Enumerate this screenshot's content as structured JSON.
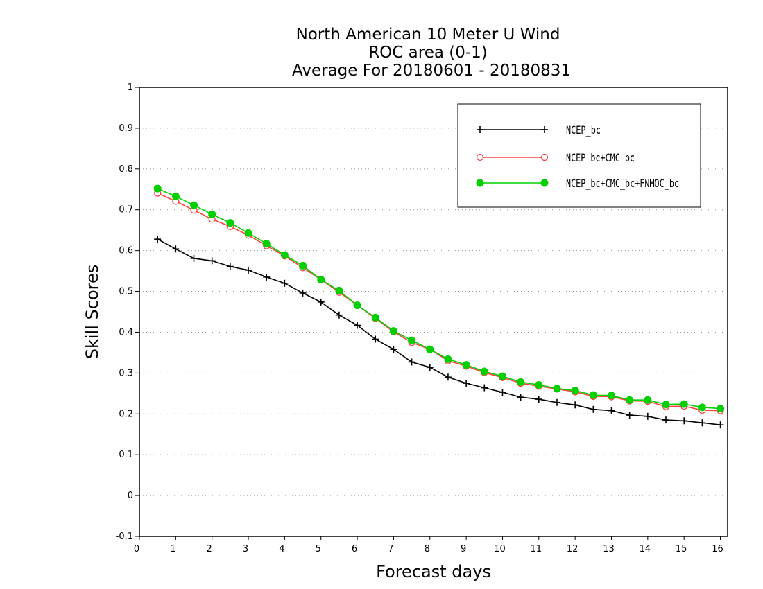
{
  "chart_data": {
    "type": "line",
    "title_lines": [
      "North American 10 Meter U Wind",
      "ROC area (0-1)",
      "Average For 20180601 - 20180831"
    ],
    "xlabel": "Forecast days",
    "ylabel": "Skill Scores",
    "xlim": [
      0,
      16.2
    ],
    "ylim": [
      -0.1,
      1
    ],
    "x_ticks": [
      0,
      1,
      2,
      3,
      4,
      5,
      6,
      7,
      8,
      9,
      10,
      11,
      12,
      13,
      14,
      15,
      16
    ],
    "y_ticks": [
      -0.1,
      0,
      0.1,
      0.2,
      0.3,
      0.4,
      0.5,
      0.6,
      0.7,
      0.8,
      0.9,
      1
    ],
    "y_tick_labels": [
      "-0.1",
      "0",
      "0.1",
      "0.2",
      "0.3",
      "0.4",
      "0.5",
      "0.6",
      "0.7",
      "0.8",
      "0.9",
      "1"
    ],
    "grid": "dotted horizontal",
    "legend_position": "top-right",
    "x": [
      0.5,
      1,
      1.5,
      2,
      2.5,
      3,
      3.5,
      4,
      4.5,
      5,
      5.5,
      6,
      6.5,
      7,
      7.5,
      8,
      8.5,
      9,
      9.5,
      10,
      10.5,
      11,
      11.5,
      12,
      12.5,
      13,
      13.5,
      14,
      14.5,
      15,
      15.5,
      16
    ],
    "series": [
      {
        "name": "NCEP_bc",
        "color": "#000000",
        "marker": "plus",
        "values": [
          0.628,
          0.604,
          0.581,
          0.575,
          0.561,
          0.552,
          0.535,
          0.52,
          0.496,
          0.474,
          0.442,
          0.417,
          0.383,
          0.358,
          0.327,
          0.314,
          0.29,
          0.275,
          0.264,
          0.253,
          0.241,
          0.236,
          0.228,
          0.222,
          0.211,
          0.208,
          0.197,
          0.194,
          0.185,
          0.183,
          0.178,
          0.173
        ]
      },
      {
        "name": "NCEP_bc+CMC_bc",
        "color": "#ff4040",
        "marker": "open-circle",
        "values": [
          0.741,
          0.721,
          0.699,
          0.677,
          0.659,
          0.638,
          0.612,
          0.587,
          0.558,
          0.529,
          0.498,
          0.466,
          0.434,
          0.401,
          0.375,
          0.358,
          0.33,
          0.317,
          0.301,
          0.289,
          0.275,
          0.268,
          0.261,
          0.254,
          0.243,
          0.242,
          0.232,
          0.231,
          0.218,
          0.219,
          0.209,
          0.208
        ]
      },
      {
        "name": "NCEP_bc+CMC_bc+FNMOC_bc",
        "color": "#00d000",
        "marker": "filled-circle",
        "values": [
          0.752,
          0.733,
          0.711,
          0.689,
          0.668,
          0.643,
          0.617,
          0.589,
          0.563,
          0.529,
          0.502,
          0.466,
          0.436,
          0.403,
          0.38,
          0.358,
          0.334,
          0.32,
          0.304,
          0.292,
          0.278,
          0.271,
          0.262,
          0.257,
          0.246,
          0.245,
          0.234,
          0.234,
          0.223,
          0.224,
          0.216,
          0.213
        ]
      }
    ]
  }
}
